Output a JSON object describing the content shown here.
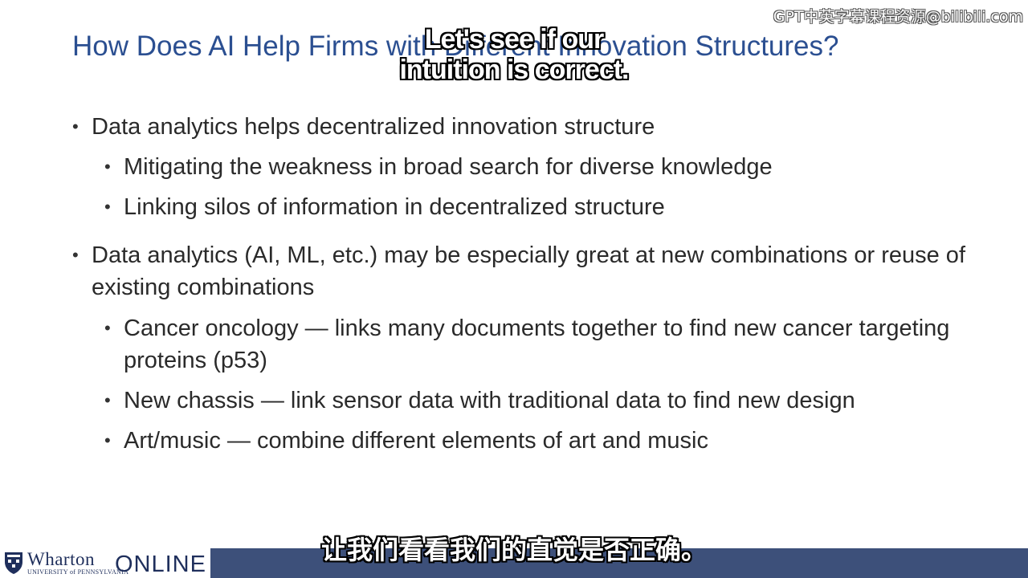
{
  "title": "How Does AI Help Firms with Different Innovation Structures?",
  "bullets": [
    {
      "text": "Data analytics helps decentralized innovation structure"
    },
    {
      "text": "Mitigating the weakness in broad search for diverse knowledge"
    },
    {
      "text": "Linking silos of information in decentralized structure"
    },
    {
      "text": "Data analytics (AI, ML, etc.) may be especially great at new combinations or reuse of existing combinations"
    },
    {
      "text": "Cancer oncology — links many documents together to find new cancer targeting proteins (p53)"
    },
    {
      "text": "New chassis — link sensor data with traditional data to find new design"
    },
    {
      "text": "Art/music — combine different elements of art and music"
    }
  ],
  "bullet_glyph": "•",
  "footer": {
    "brand": "Wharton",
    "university": "UNIVERSITY of PENNSYLVANIA",
    "online": "ONLINE",
    "bar_color": "#3d507a"
  },
  "watermark": "GPT中英字幕课程资源@bilibili.com",
  "subtitles": {
    "english_line1": "Let's see if our",
    "english_line2": "intuition is correct.",
    "chinese": "让我们看看我们的直觉是否正确。"
  },
  "colors": {
    "title": "#2b4f91",
    "body_text": "#2a2a2a"
  }
}
